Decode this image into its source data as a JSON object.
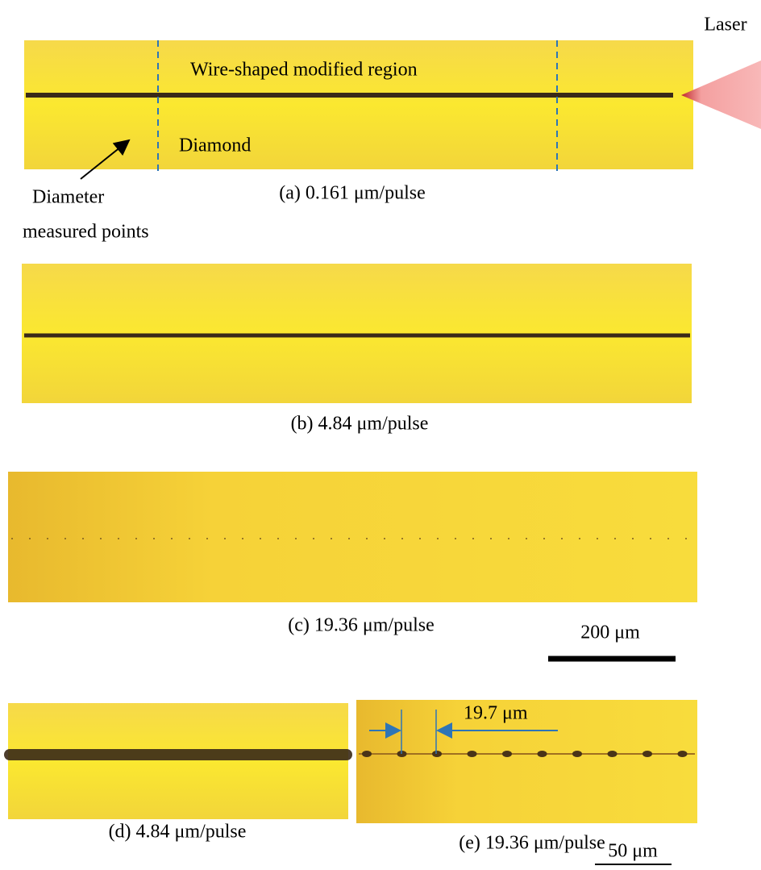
{
  "laser_label": "Laser",
  "region_label": "Wire-shaped modified region",
  "material_label": "Diamond",
  "measure_label": [
    "Diameter",
    "measured points"
  ],
  "panels": [
    {
      "caption": "(a) 0.161 μm/pulse"
    },
    {
      "caption": "(b) 4.84 μm/pulse"
    },
    {
      "caption": "(c) 19.36 μm/pulse"
    },
    {
      "caption": "(d) 4.84 μm/pulse"
    },
    {
      "caption": "(e) 19.36 μm/pulse"
    }
  ],
  "spacing_label": "19.7 μm",
  "scale_bars": [
    "200 μm",
    "50 μm"
  ]
}
